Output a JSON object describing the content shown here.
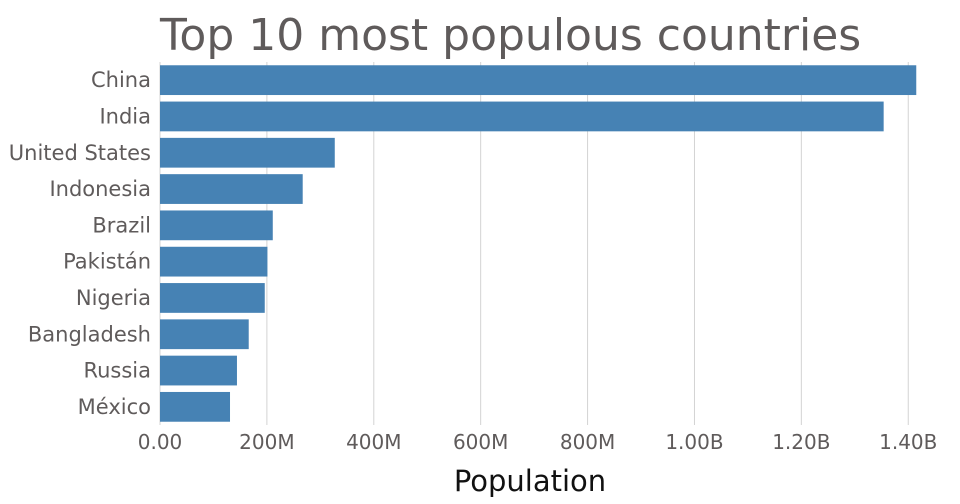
{
  "chart_data": {
    "type": "bar",
    "orientation": "horizontal",
    "title": "Top 10 most populous countries",
    "xlabel": "Population",
    "ylabel": "",
    "categories": [
      "China",
      "India",
      "United States",
      "Indonesia",
      "Brazil",
      "Pakistán",
      "Nigeria",
      "Bangladesh",
      "Russia",
      "México"
    ],
    "values": [
      1415000000,
      1354000000,
      327000000,
      267000000,
      211000000,
      201000000,
      196000000,
      166000000,
      144000000,
      131000000
    ],
    "xlim": [
      0,
      1480000000
    ],
    "xticks": [
      0,
      200000000,
      400000000,
      600000000,
      800000000,
      1000000000,
      1200000000,
      1400000000
    ],
    "xtick_labels": [
      "0.00",
      "200M",
      "400M",
      "600M",
      "800M",
      "1.00B",
      "1.20B",
      "1.40B"
    ],
    "grid": true,
    "legend": false,
    "bar_color": "#4682b4",
    "grid_color": "#d3d3d3",
    "text_color": "#5f5b5b"
  }
}
